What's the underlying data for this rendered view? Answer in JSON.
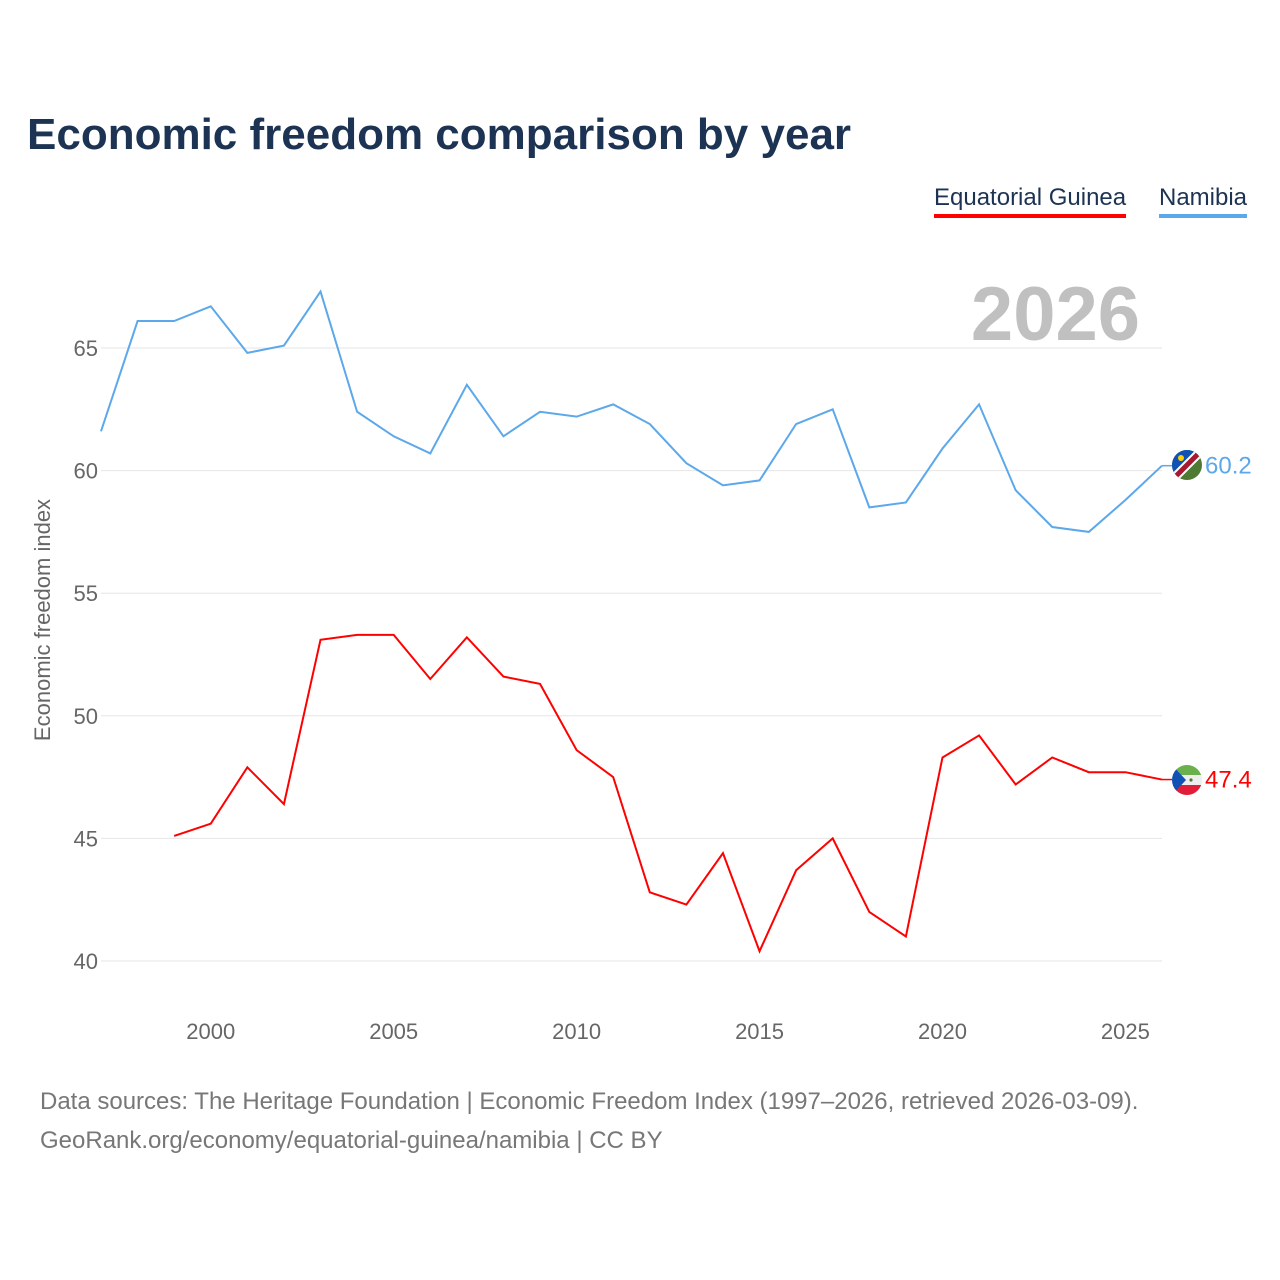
{
  "chart_data": {
    "type": "line",
    "title": "Economic freedom comparison by year",
    "ylabel": "Economic freedom index",
    "xlabel": "",
    "xlim": [
      1997,
      2026
    ],
    "ylim": [
      38,
      68
    ],
    "yticks": [
      40,
      45,
      50,
      55,
      60,
      65
    ],
    "xticks": [
      2000,
      2005,
      2010,
      2015,
      2020,
      2025
    ],
    "grid": true,
    "legend_position": "top-right",
    "year_label": "2026",
    "series": [
      {
        "name": "Equatorial Guinea",
        "color": "#ff0000",
        "end_label": "47.4",
        "x": [
          1999,
          2000,
          2001,
          2002,
          2003,
          2004,
          2005,
          2006,
          2007,
          2008,
          2009,
          2010,
          2011,
          2012,
          2013,
          2014,
          2015,
          2016,
          2017,
          2018,
          2019,
          2020,
          2021,
          2022,
          2023,
          2024,
          2025,
          2026
        ],
        "values": [
          45.1,
          45.6,
          47.9,
          46.4,
          53.1,
          53.3,
          53.3,
          51.5,
          53.2,
          51.6,
          51.3,
          48.6,
          47.5,
          42.8,
          42.3,
          44.4,
          40.4,
          43.7,
          45.0,
          42.0,
          41.0,
          48.3,
          49.2,
          47.2,
          48.3,
          47.7,
          47.7,
          47.4
        ]
      },
      {
        "name": "Namibia",
        "color": "#5ca8ea",
        "end_label": "60.2",
        "x": [
          1997,
          1998,
          1999,
          2000,
          2001,
          2002,
          2003,
          2004,
          2005,
          2006,
          2007,
          2008,
          2009,
          2010,
          2011,
          2012,
          2013,
          2014,
          2015,
          2016,
          2017,
          2018,
          2019,
          2020,
          2021,
          2022,
          2023,
          2024,
          2025,
          2026
        ],
        "values": [
          61.6,
          66.1,
          66.1,
          66.7,
          64.8,
          65.1,
          67.3,
          62.4,
          61.4,
          60.7,
          63.5,
          61.4,
          62.4,
          62.2,
          62.7,
          61.9,
          60.3,
          59.4,
          59.6,
          61.9,
          62.5,
          58.5,
          58.7,
          60.9,
          62.7,
          59.2,
          57.7,
          57.5,
          58.8,
          60.2
        ]
      }
    ]
  },
  "footer": {
    "line1": "Data sources: The Heritage Foundation | Economic Freedom Index (1997–2026, retrieved 2026-03-09).",
    "line2": "GeoRank.org/economy/equatorial-guinea/namibia | CC BY"
  }
}
